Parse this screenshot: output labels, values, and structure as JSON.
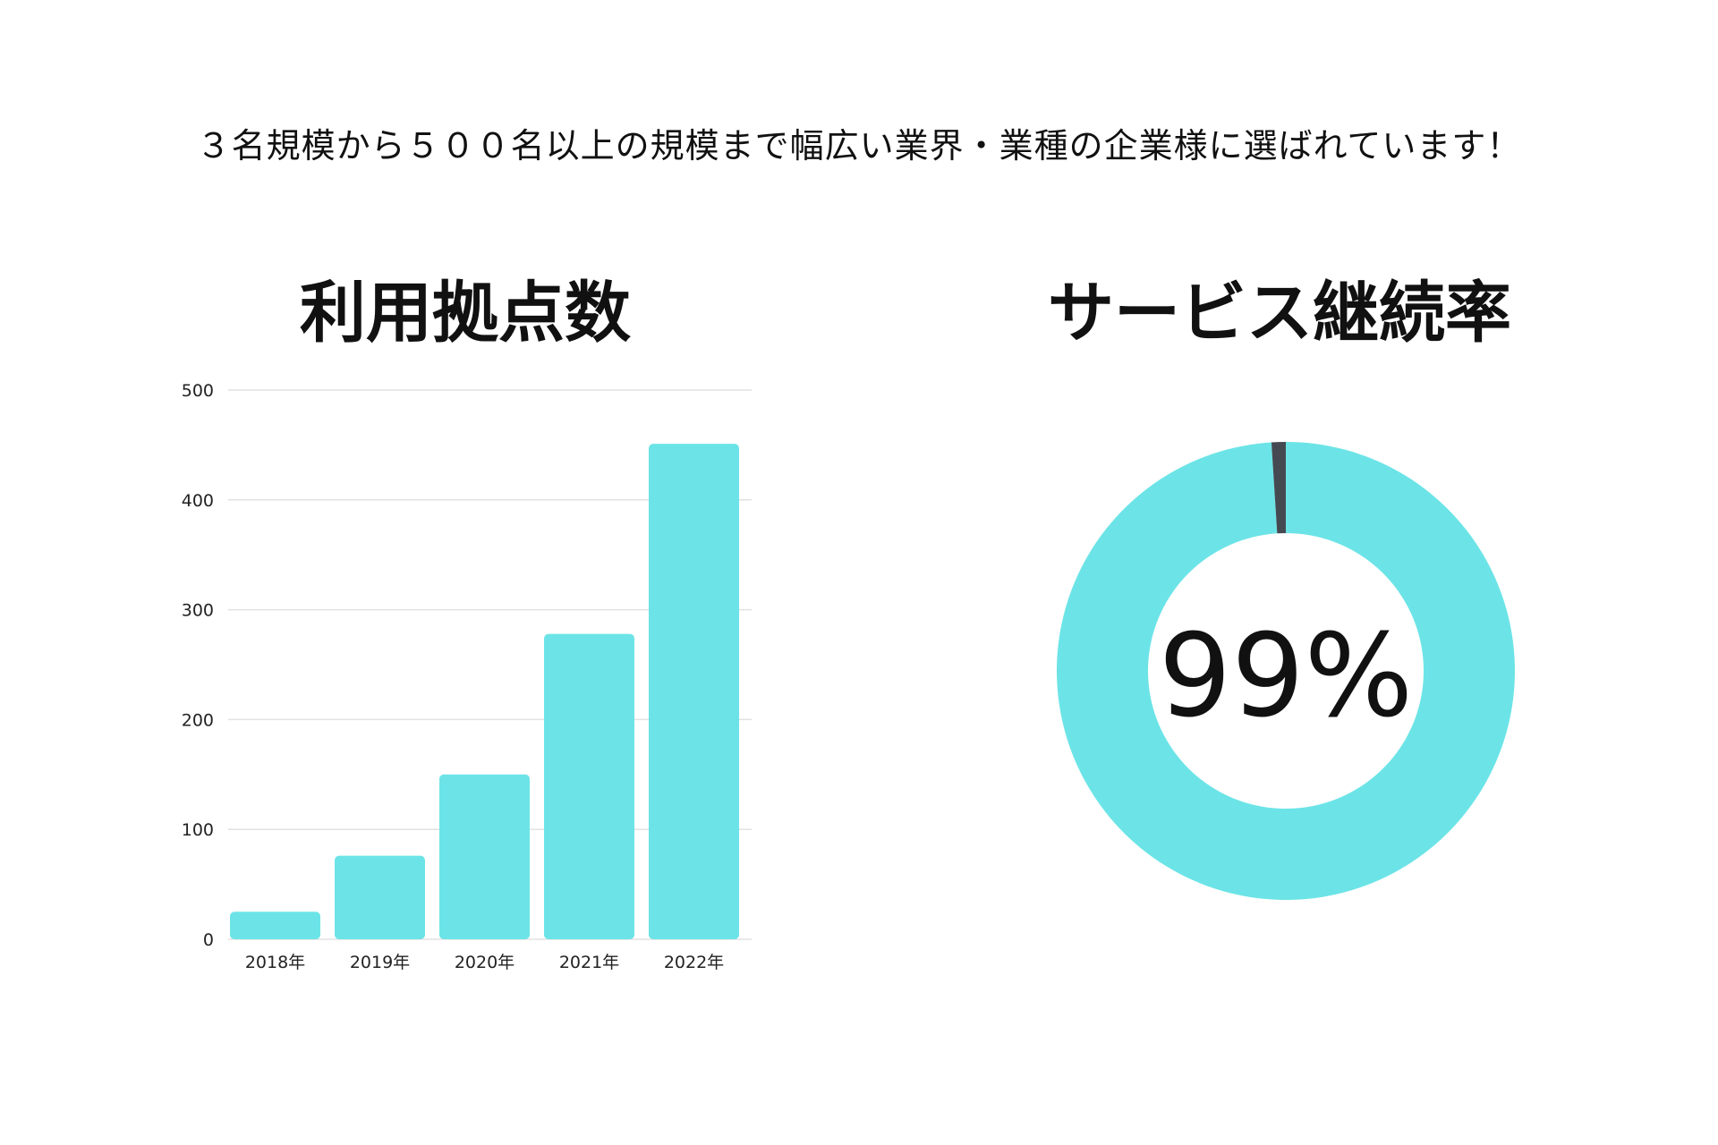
{
  "headline": "３名規模から５００名以上の規模まで幅広い業界・業種の企業様に選ばれています！",
  "colors": {
    "accent": "#6ce4e7",
    "remainder": "#454a52",
    "grid": "#e2e2e2"
  },
  "chart_data": [
    {
      "type": "bar",
      "title": "利用拠点数",
      "categories": [
        "2018年",
        "2019年",
        "2020年",
        "2021年",
        "2022年"
      ],
      "values": [
        25,
        76,
        150,
        278,
        451
      ],
      "ylim": [
        0,
        500
      ],
      "yticks": [
        0,
        100,
        200,
        300,
        400,
        500
      ],
      "grid": true
    },
    {
      "type": "pie",
      "subtype": "donut",
      "title": "サービス継続率",
      "slices": [
        {
          "value": 99
        },
        {
          "value": 1
        }
      ],
      "center_label": "99%"
    }
  ]
}
